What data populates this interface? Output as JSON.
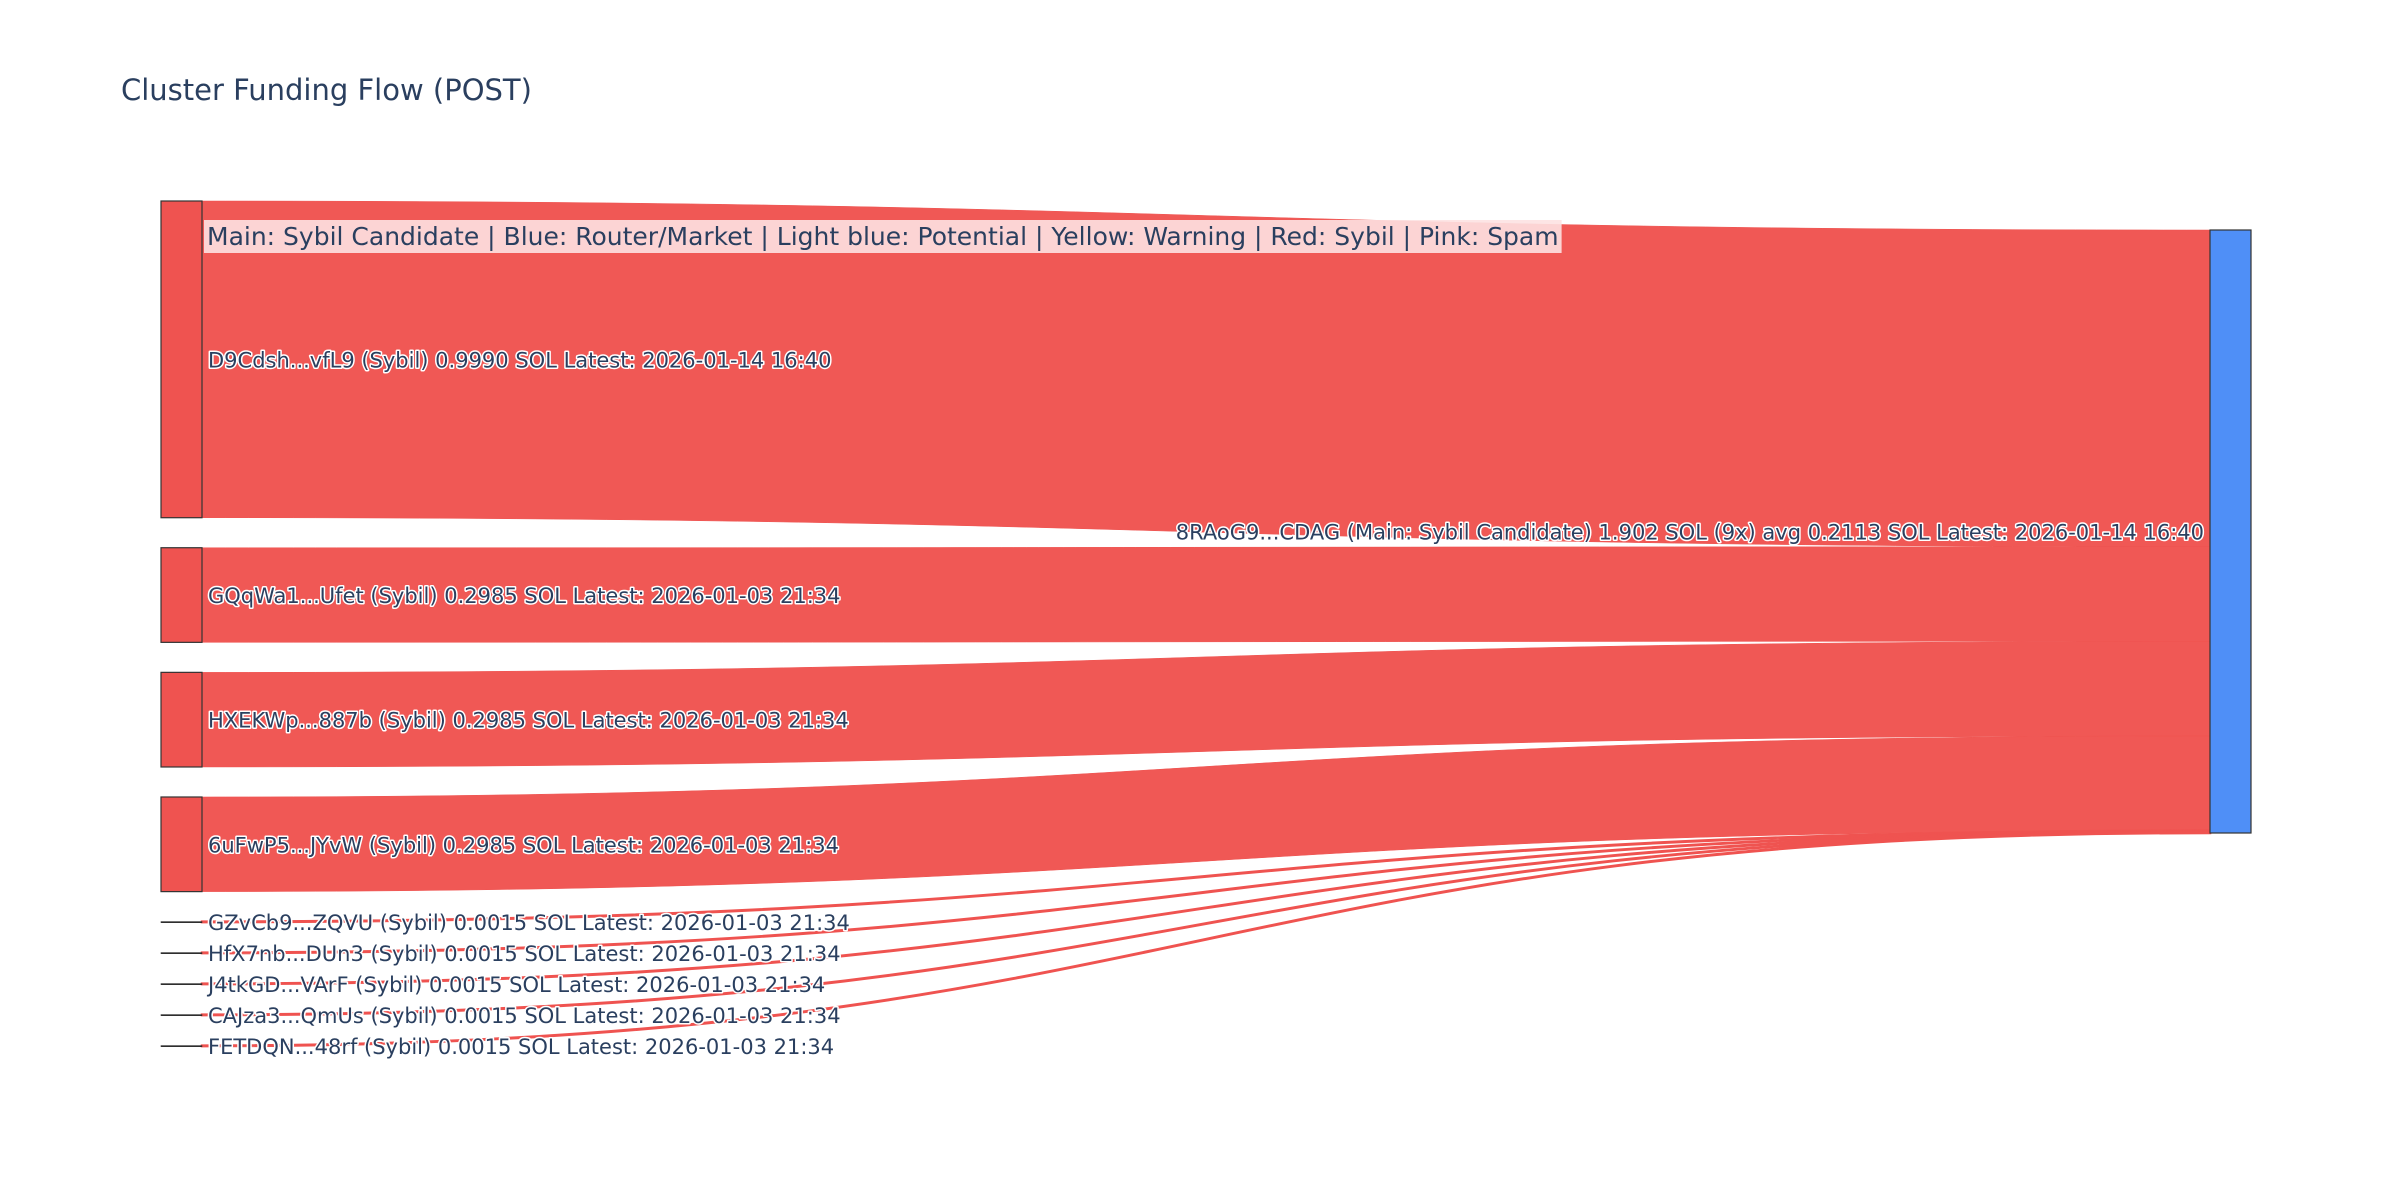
{
  "chart_data": {
    "type": "sankey",
    "title": "Cluster Funding Flow (POST)",
    "legend_note": "Main: Sybil Candidate  |  Blue: Router/Market | Light blue: Potential | Yellow: Warning | Red: Sybil | Pink: Spam",
    "colors": {
      "sybil_node": "#ef5350",
      "main_node": "#4f8ff7",
      "link": "#ef5350",
      "node_border": "#333333",
      "legend_bg": "#fde2e2"
    },
    "sources": [
      {
        "label": "D9Cdsh...vfL9 (Sybil) 0.9990 SOL Latest: 2026-01-14 16:40",
        "value": 0.999
      },
      {
        "label": "GQqWa1...Ufet (Sybil) 0.2985 SOL Latest: 2026-01-03 21:34",
        "value": 0.2985
      },
      {
        "label": "HXEKWp...887b (Sybil) 0.2985 SOL Latest: 2026-01-03 21:34",
        "value": 0.2985
      },
      {
        "label": "6uFwP5...JYvW (Sybil) 0.2985 SOL Latest: 2026-01-03 21:34",
        "value": 0.2985
      },
      {
        "label": "GZvCb9...ZQVU (Sybil) 0.0015 SOL Latest: 2026-01-03 21:34",
        "value": 0.0015
      },
      {
        "label": "HfX7nb...DUn3 (Sybil) 0.0015 SOL Latest: 2026-01-03 21:34",
        "value": 0.0015
      },
      {
        "label": "J4tkGD...VArF (Sybil) 0.0015 SOL Latest: 2026-01-03 21:34",
        "value": 0.0015
      },
      {
        "label": "CAJza3...QmUs (Sybil) 0.0015 SOL Latest: 2026-01-03 21:34",
        "value": 0.0015
      },
      {
        "label": "FETDQN...48rf (Sybil) 0.0015 SOL Latest: 2026-01-03 21:34",
        "value": 0.0015
      }
    ],
    "target": {
      "label": "8RAoG9...CDAG (Main: Sybil Candidate) 1.902 SOL (9x) avg 0.2113 SOL Latest: 2026-01-14 16:40",
      "value": 1.902
    }
  }
}
